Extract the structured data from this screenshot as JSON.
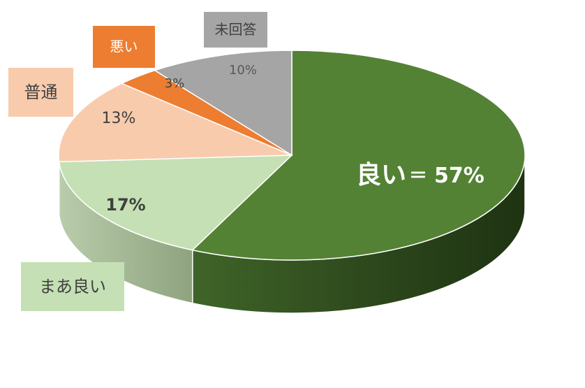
{
  "chart_data": {
    "type": "pie",
    "categories": [
      "良い",
      "まあ良い",
      "普通",
      "悪い",
      "未回答"
    ],
    "values": [
      57,
      17,
      13,
      3,
      10
    ],
    "value_labels": [
      "57%",
      "17%",
      "13%",
      "3%",
      "10%"
    ],
    "label_separator": "＝",
    "colors": [
      "#548235",
      "#c5e0b4",
      "#f8cbad",
      "#ed7d31",
      "#a5a5a5"
    ]
  }
}
